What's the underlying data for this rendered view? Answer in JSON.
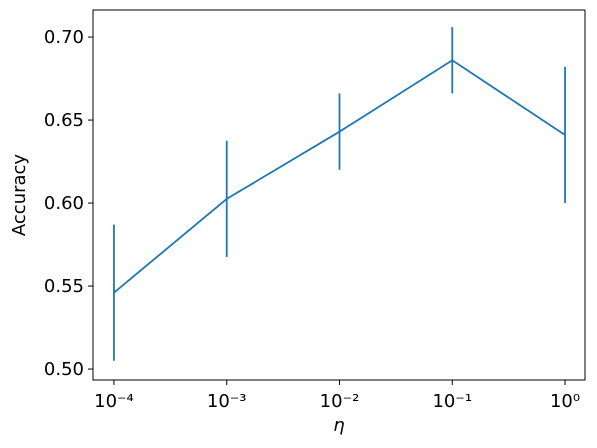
{
  "chart_data": {
    "type": "errorbar-line",
    "xlabel": "η",
    "ylabel": "Accuracy",
    "x": [
      0.0001,
      0.001,
      0.01,
      0.1,
      1
    ],
    "series": [
      {
        "color": "#1f77b4",
        "values": [
          0.546,
          0.6025,
          0.643,
          0.686,
          0.641
        ],
        "errors": [
          0.041,
          0.035,
          0.023,
          0.02,
          0.041
        ]
      }
    ],
    "xscale": "log",
    "xlim": [
      6.52e-05,
      1.503
    ],
    "xticks": [
      {
        "value": 0.0001,
        "label": "10⁻⁴"
      },
      {
        "value": 0.001,
        "label": "10⁻³"
      },
      {
        "value": 0.01,
        "label": "10⁻²"
      },
      {
        "value": 0.1,
        "label": "10⁻¹"
      },
      {
        "value": 1,
        "label": "10⁰"
      }
    ],
    "ylim": [
      0.4934,
      0.7163
    ],
    "yticks": [
      {
        "value": 0.5,
        "label": "0.50"
      },
      0.55,
      {
        "value": 0.6,
        "label": "0.60"
      },
      0.65,
      {
        "value": 0.7,
        "label": "0.70"
      }
    ],
    "grid": false
  }
}
